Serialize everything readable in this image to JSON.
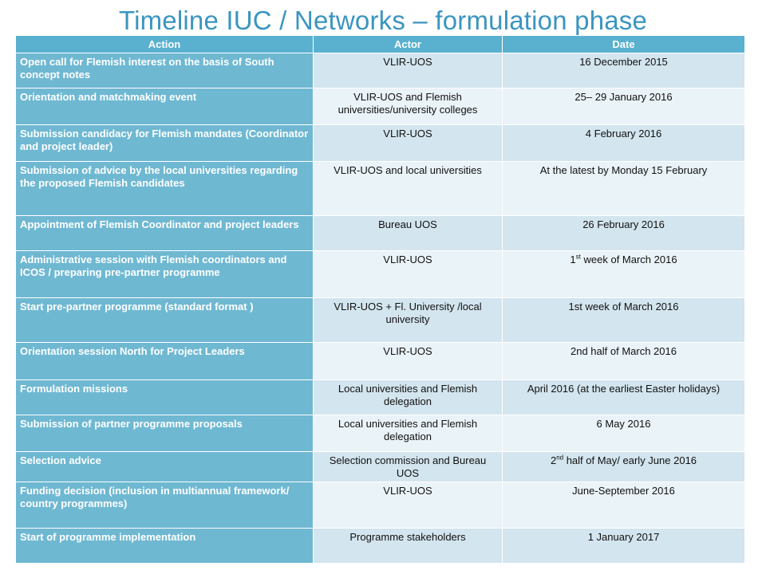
{
  "title": "Timeline IUC / Networks – formulation phase",
  "headers": {
    "action": "Action",
    "actor": "Actor",
    "date": "Date"
  },
  "rows": [
    {
      "action": "Open call for Flemish interest on the basis of South concept notes",
      "actor": "VLIR-UOS",
      "date": "16 December 2015"
    },
    {
      "action": "Orientation and matchmaking event",
      "actor": "VLIR-UOS and Flemish universities/university colleges",
      "date": "25– 29 January 2016"
    },
    {
      "action": "Submission candidacy for Flemish mandates (Coordinator and project leader)",
      "actor": "VLIR-UOS",
      "date": "4 February 2016"
    },
    {
      "action": "Submission of advice by the local universities regarding the proposed Flemish candidates",
      "actor": "VLIR-UOS and local universities",
      "date": "At the latest by Monday 15 February"
    },
    {
      "action": "Appointment of Flemish Coordinator and project leaders",
      "actor": "Bureau UOS",
      "date": "26 February 2016"
    },
    {
      "action": "Administrative session with Flemish coordinators and ICOS / preparing pre-partner programme",
      "actor": "VLIR-UOS",
      "date_pre": "1",
      "date_sup": "st",
      "date_post": " week of March 2016"
    },
    {
      "action": "Start pre-partner programme (standard format )",
      "actor": "VLIR-UOS + Fl. University /local university",
      "date": "1st week of March 2016"
    },
    {
      "action": "Orientation session North for Project Leaders",
      "actor": "VLIR-UOS",
      "date": "2nd half of March 2016"
    },
    {
      "action": "Formulation missions",
      "actor": "Local universities and Flemish delegation",
      "date": "April 2016 (at the earliest Easter holidays)"
    },
    {
      "action": "Submission of partner programme proposals",
      "actor": "Local universities and Flemish delegation",
      "date": "6 May 2016"
    },
    {
      "action": "Selection advice",
      "actor": "Selection commission and Bureau UOS",
      "date_pre": "2",
      "date_sup": "nd",
      "date_post": " half of May/ early June 2016"
    },
    {
      "action": "Funding decision (inclusion in multiannual framework/ country programmes)",
      "actor": "VLIR-UOS",
      "date": "June-September 2016"
    },
    {
      "action": "Start of programme implementation",
      "actor": "Programme stakeholders",
      "date": "1 January 2017"
    }
  ]
}
